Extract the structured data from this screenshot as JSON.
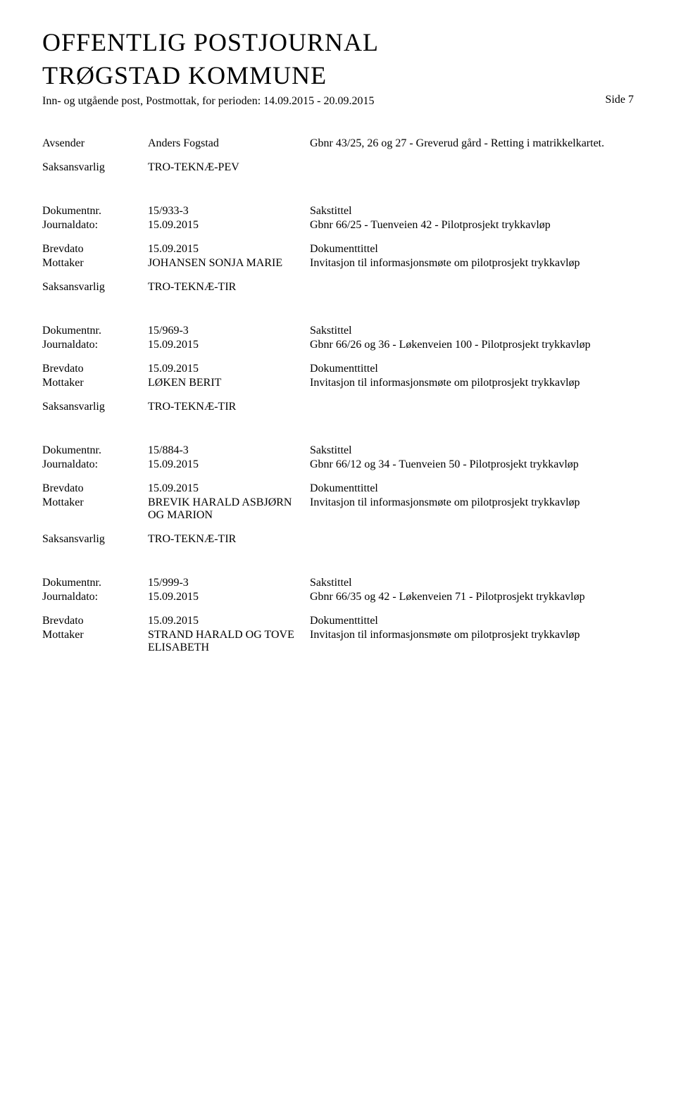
{
  "header": {
    "title_line1": "OFFENTLIG POSTJOURNAL",
    "title_line2": "TRØGSTAD KOMMUNE",
    "subline": "Inn- og utgående post, Postmottak, for perioden: 14.09.2015 - 20.09.2015",
    "side": "Side 7"
  },
  "entries": [
    {
      "rows": [
        {
          "label": "Avsender",
          "value": "Anders Fogstad",
          "desc": "Gbnr 43/25, 26 og 27 - Greverud gård - Retting i matrikkelkartet."
        }
      ],
      "spacer": true,
      "rows2": [
        {
          "label": "Saksansvarlig",
          "value": "TRO-TEKNÆ-PEV",
          "desc": ""
        }
      ]
    },
    {
      "rows": [
        {
          "label": "Dokumentnr.",
          "value": "15/933-3",
          "desc": "Sakstittel"
        },
        {
          "label": "Journaldato:",
          "value": "15.09.2015",
          "desc": "Gbnr 66/25 - Tuenveien 42 - Pilotprosjekt trykkavløp"
        }
      ],
      "spacer": true,
      "rows2": [
        {
          "label": "Brevdato",
          "value": "15.09.2015",
          "desc": "Dokumenttittel"
        },
        {
          "label": "Mottaker",
          "value": "JOHANSEN SONJA MARIE",
          "desc": "Invitasjon til informasjonsmøte om pilotprosjekt trykkavløp"
        }
      ],
      "spacer2": true,
      "rows3": [
        {
          "label": "Saksansvarlig",
          "value": "TRO-TEKNÆ-TIR",
          "desc": ""
        }
      ]
    },
    {
      "rows": [
        {
          "label": "Dokumentnr.",
          "value": "15/969-3",
          "desc": "Sakstittel"
        },
        {
          "label": "Journaldato:",
          "value": "15.09.2015",
          "desc": "Gbnr 66/26 og 36 - Løkenveien 100 - Pilotprosjekt trykkavløp"
        }
      ],
      "spacer": true,
      "rows2": [
        {
          "label": "Brevdato",
          "value": "15.09.2015",
          "desc": "Dokumenttittel"
        },
        {
          "label": "Mottaker",
          "value": "LØKEN BERIT",
          "desc": "Invitasjon til informasjonsmøte om pilotprosjekt trykkavløp"
        }
      ],
      "spacer2": true,
      "rows3": [
        {
          "label": "Saksansvarlig",
          "value": "TRO-TEKNÆ-TIR",
          "desc": ""
        }
      ]
    },
    {
      "rows": [
        {
          "label": "Dokumentnr.",
          "value": "15/884-3",
          "desc": "Sakstittel"
        },
        {
          "label": "Journaldato:",
          "value": "15.09.2015",
          "desc": "Gbnr 66/12 og 34 - Tuenveien 50 - Pilotprosjekt trykkavløp"
        }
      ],
      "spacer": true,
      "rows2": [
        {
          "label": "Brevdato",
          "value": "15.09.2015",
          "desc": "Dokumenttittel"
        },
        {
          "label": "Mottaker",
          "value": "BREVIK HARALD ASBJØRN OG MARION",
          "desc": "Invitasjon til informasjonsmøte om pilotprosjekt trykkavløp"
        }
      ],
      "spacer2": true,
      "rows3": [
        {
          "label": "Saksansvarlig",
          "value": "TRO-TEKNÆ-TIR",
          "desc": ""
        }
      ]
    },
    {
      "rows": [
        {
          "label": "Dokumentnr.",
          "value": "15/999-3",
          "desc": "Sakstittel"
        },
        {
          "label": "Journaldato:",
          "value": "15.09.2015",
          "desc": "Gbnr 66/35 og 42 - Løkenveien 71 - Pilotprosjekt trykkavløp"
        }
      ],
      "spacer": true,
      "rows2": [
        {
          "label": "Brevdato",
          "value": "15.09.2015",
          "desc": "Dokumenttittel"
        },
        {
          "label": "Mottaker",
          "value": "STRAND HARALD OG TOVE ELISABETH",
          "desc": "Invitasjon til informasjonsmøte om pilotprosjekt trykkavløp"
        }
      ]
    }
  ]
}
